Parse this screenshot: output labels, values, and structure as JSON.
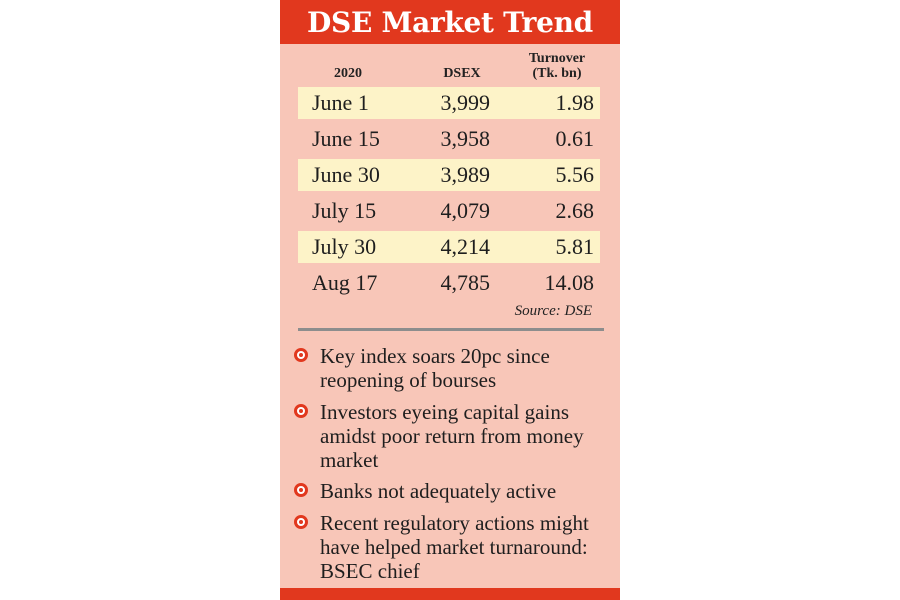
{
  "title": "DSE Market Trend",
  "headers": {
    "year": "2020",
    "index": "DSEX",
    "turnover_line1": "Turnover",
    "turnover_line2": "(Tk. bn)"
  },
  "rows": [
    {
      "date": "June 1",
      "dsex": "3,999",
      "turnover": "1.98"
    },
    {
      "date": "June 15",
      "dsex": "3,958",
      "turnover": "0.61"
    },
    {
      "date": "June 30",
      "dsex": "3,989",
      "turnover": "5.56"
    },
    {
      "date": "July 15",
      "dsex": "4,079",
      "turnover": "2.68"
    },
    {
      "date": "July 30",
      "dsex": "4,214",
      "turnover": "5.81"
    },
    {
      "date": "Aug 17",
      "dsex": "4,785",
      "turnover": "14.08"
    }
  ],
  "source": "Source: DSE",
  "bullets": [
    "Key index soars 20pc since reopening of bourses",
    "Investors eyeing capital gains amidst poor return from money market",
    "Banks not adequately active",
    "Recent regulatory actions might have helped market turnaround: BSEC chief"
  ],
  "colors": {
    "accent": "#e1381e",
    "panel": "#f8c6b8",
    "row_highlight": "#fdf3c8",
    "rule": "#8d8d8d"
  }
}
